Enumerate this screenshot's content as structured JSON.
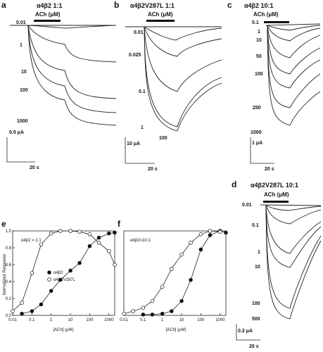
{
  "panels": [
    {
      "label": "a",
      "title": "α4β2 1:1",
      "ach_label": "ACh (μM)",
      "concs": [
        "0.01",
        "1",
        "10",
        "100",
        "1000"
      ],
      "scale_current": "0.5 μA",
      "scale_time": "20 s"
    },
    {
      "label": "b",
      "title": "α4β2V287L 1:1",
      "ach_label": "ACh (μM)",
      "concs": [
        "0.01",
        "0.025",
        "0.1",
        "1",
        "100"
      ],
      "scale_current": "10 μA",
      "scale_time": "20 s"
    },
    {
      "label": "c",
      "title": "α4β2 10:1",
      "ach_label": "ACh (μM)",
      "concs": [
        "0.1",
        "1",
        "10",
        "50",
        "100",
        "250",
        "1000"
      ],
      "scale_current": "1 μA",
      "scale_time": "20 s"
    },
    {
      "label": "d",
      "title": "α4β2V287L 10:1",
      "ach_label": "ACh (μM)",
      "concs": [
        "0.01",
        "0.1",
        "1",
        "10",
        "100",
        "500"
      ],
      "scale_current": "0.2 μA",
      "scale_time": "20 s"
    }
  ],
  "chart_data": [
    {
      "label": "e",
      "type": "scatter",
      "annotation": "α4β2 = 1:1",
      "xlabel": "[ACh] (μM)",
      "ylabel": "Normalized Response",
      "xscale": "log",
      "xlim": [
        0.01,
        2000
      ],
      "ylim": [
        0,
        1.0
      ],
      "xticks": [
        "0.01",
        "0.1",
        "1",
        "10",
        "100",
        "1000"
      ],
      "yticks": [
        "0.0",
        "0.2",
        "0.4",
        "0.6",
        "0.8",
        "1.0"
      ],
      "legend_position": "center-right",
      "series": [
        {
          "name": "α4β2",
          "marker": "filled",
          "x": [
            0.03,
            0.1,
            0.3,
            1,
            3,
            10,
            30,
            100,
            300,
            1000,
            2000
          ],
          "y": [
            0.02,
            0.05,
            0.13,
            0.29,
            0.42,
            0.53,
            0.62,
            0.82,
            0.92,
            0.97,
            0.98
          ]
        },
        {
          "name": "α4β2V287L",
          "marker": "open",
          "x": [
            0.01,
            0.03,
            0.1,
            0.3,
            1,
            3,
            10,
            30,
            100,
            300,
            1000,
            2000
          ],
          "y": [
            0.05,
            0.15,
            0.5,
            0.84,
            0.97,
            1.0,
            1.0,
            0.99,
            0.96,
            0.86,
            0.76,
            0.6
          ]
        }
      ]
    },
    {
      "label": "f",
      "type": "scatter",
      "annotation": "α4β2=10:1",
      "xlabel": "[ACh] (μM)",
      "ylabel": "",
      "xscale": "log",
      "xlim": [
        0.01,
        2000
      ],
      "ylim": [
        0,
        1.0
      ],
      "xticks": [
        "0.01",
        "0.1",
        "1",
        "10",
        "100",
        "1000"
      ],
      "series": [
        {
          "name": "α4β2",
          "marker": "filled",
          "x": [
            0.1,
            0.3,
            1,
            3,
            10,
            30,
            100,
            300,
            1000,
            2000
          ],
          "y": [
            0.01,
            0.01,
            0.02,
            0.05,
            0.17,
            0.42,
            0.78,
            0.95,
            1.0,
            0.98
          ]
        },
        {
          "name": "α4β2V287L",
          "marker": "open",
          "x": [
            0.01,
            0.03,
            0.1,
            0.3,
            1,
            3,
            10,
            30,
            100,
            300,
            1000
          ],
          "y": [
            0.02,
            0.05,
            0.09,
            0.17,
            0.34,
            0.55,
            0.72,
            0.86,
            0.96,
            1.0,
            0.99
          ]
        }
      ]
    }
  ]
}
